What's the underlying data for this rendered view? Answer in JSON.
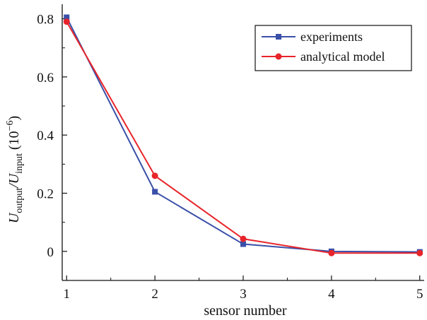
{
  "chart_data": {
    "type": "line",
    "title": "",
    "xlabel": "sensor number",
    "ylabel": {
      "main": "U",
      "sub1": "output",
      "slash": "/",
      "main2": "U",
      "sub2": "input",
      "unit": " (10",
      "exp": "−6",
      "close": ")"
    },
    "x": [
      1,
      2,
      3,
      4,
      5
    ],
    "xlim": [
      0.95,
      5.05
    ],
    "ylim": [
      -0.1,
      0.85
    ],
    "xticks": [
      1,
      2,
      3,
      4,
      5
    ],
    "xtick_labels": [
      "1",
      "2",
      "3",
      "4",
      "5"
    ],
    "yticks": [
      0,
      0.2,
      0.4,
      0.6,
      0.8
    ],
    "ytick_labels": [
      "0",
      "0.2",
      "0.4",
      "0.6",
      "0.8"
    ],
    "grid": false,
    "legend_position": "top-right",
    "series": [
      {
        "name": "experiments",
        "color": "#3a4fa8",
        "marker": "square",
        "values": [
          0.805,
          0.205,
          0.025,
          0.0,
          -0.002
        ]
      },
      {
        "name": "analytical model",
        "color": "#e8242a",
        "marker": "circle",
        "values": [
          0.79,
          0.26,
          0.043,
          -0.006,
          -0.006
        ]
      }
    ]
  }
}
